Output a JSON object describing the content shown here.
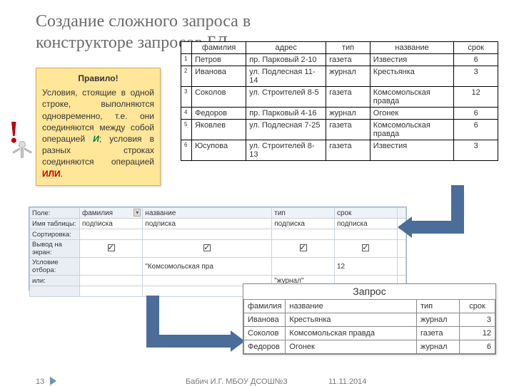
{
  "title": "Создание сложного запроса в конструкторе запросов БД",
  "callout": {
    "heading": "Правило!",
    "body_parts": {
      "p1": "Условия, стоящие в одной строке, выполняются одновременно, т.е. они соединяются между собой операцией ",
      "and": "И",
      "p2": "; условия в разных строках соединяются операцией ",
      "or": "ИЛИ",
      "p3": "."
    }
  },
  "source_table": {
    "columns": [
      "фамилия",
      "адрес",
      "тип",
      "название",
      "срок"
    ],
    "rows": [
      {
        "n": "1",
        "f": "Петров",
        "a": "пр. Парковый 2-10",
        "t": "газета",
        "name": "Известия",
        "s": "6"
      },
      {
        "n": "2",
        "f": "Иванова",
        "a": "ул. Подлесная 11-14",
        "t": "журнал",
        "name": "Крестьянка",
        "s": "3"
      },
      {
        "n": "3",
        "f": "Соколов",
        "a": "ул. Строителей 8-5",
        "t": "газета",
        "name": "Комсомольская правда",
        "s": "12"
      },
      {
        "n": "4",
        "f": "Федоров",
        "a": "пр. Парковый 4-16",
        "t": "журнал",
        "name": "Огонек",
        "s": "6"
      },
      {
        "n": "5",
        "f": "Яковлев",
        "a": "ул. Подлесная 7-25",
        "t": "газета",
        "name": "Комсомольская правда",
        "s": "6"
      },
      {
        "n": "6",
        "f": "Юсупова",
        "a": "ул. Строителей 8-13",
        "t": "газета",
        "name": "Известия",
        "s": "3"
      }
    ]
  },
  "designer": {
    "row_labels": [
      "Поле:",
      "Имя таблицы:",
      "Сортировка:",
      "Вывод на экран:",
      "Условие отбора:",
      "или:"
    ],
    "fields": [
      "фамилия",
      "название",
      "тип",
      "срок"
    ],
    "table_name": "подписка",
    "criteria": {
      "name": "\"Комсомольская пра",
      "srok": "12"
    },
    "or": {
      "tip": "\"журнал\""
    }
  },
  "result": {
    "caption": "Запрос",
    "columns": [
      "фамилия",
      "название",
      "тип",
      "срок"
    ],
    "rows": [
      {
        "f": "Иванова",
        "name": "Крестьянка",
        "t": "журнал",
        "s": "3"
      },
      {
        "f": "Соколов",
        "name": "Комсомольская правда",
        "t": "газета",
        "s": "12"
      },
      {
        "f": "Федоров",
        "name": "Огонек",
        "t": "журнал",
        "s": "6"
      }
    ]
  },
  "footer": {
    "page": "13",
    "author": "Бабич И.Г. МБОУ ДСОШ№3",
    "date": "11.11.2014"
  },
  "colors": {
    "accent_arrow": "#4a6d9a",
    "callout_bg": "#ffe699",
    "title_color": "#6b6b6b"
  }
}
